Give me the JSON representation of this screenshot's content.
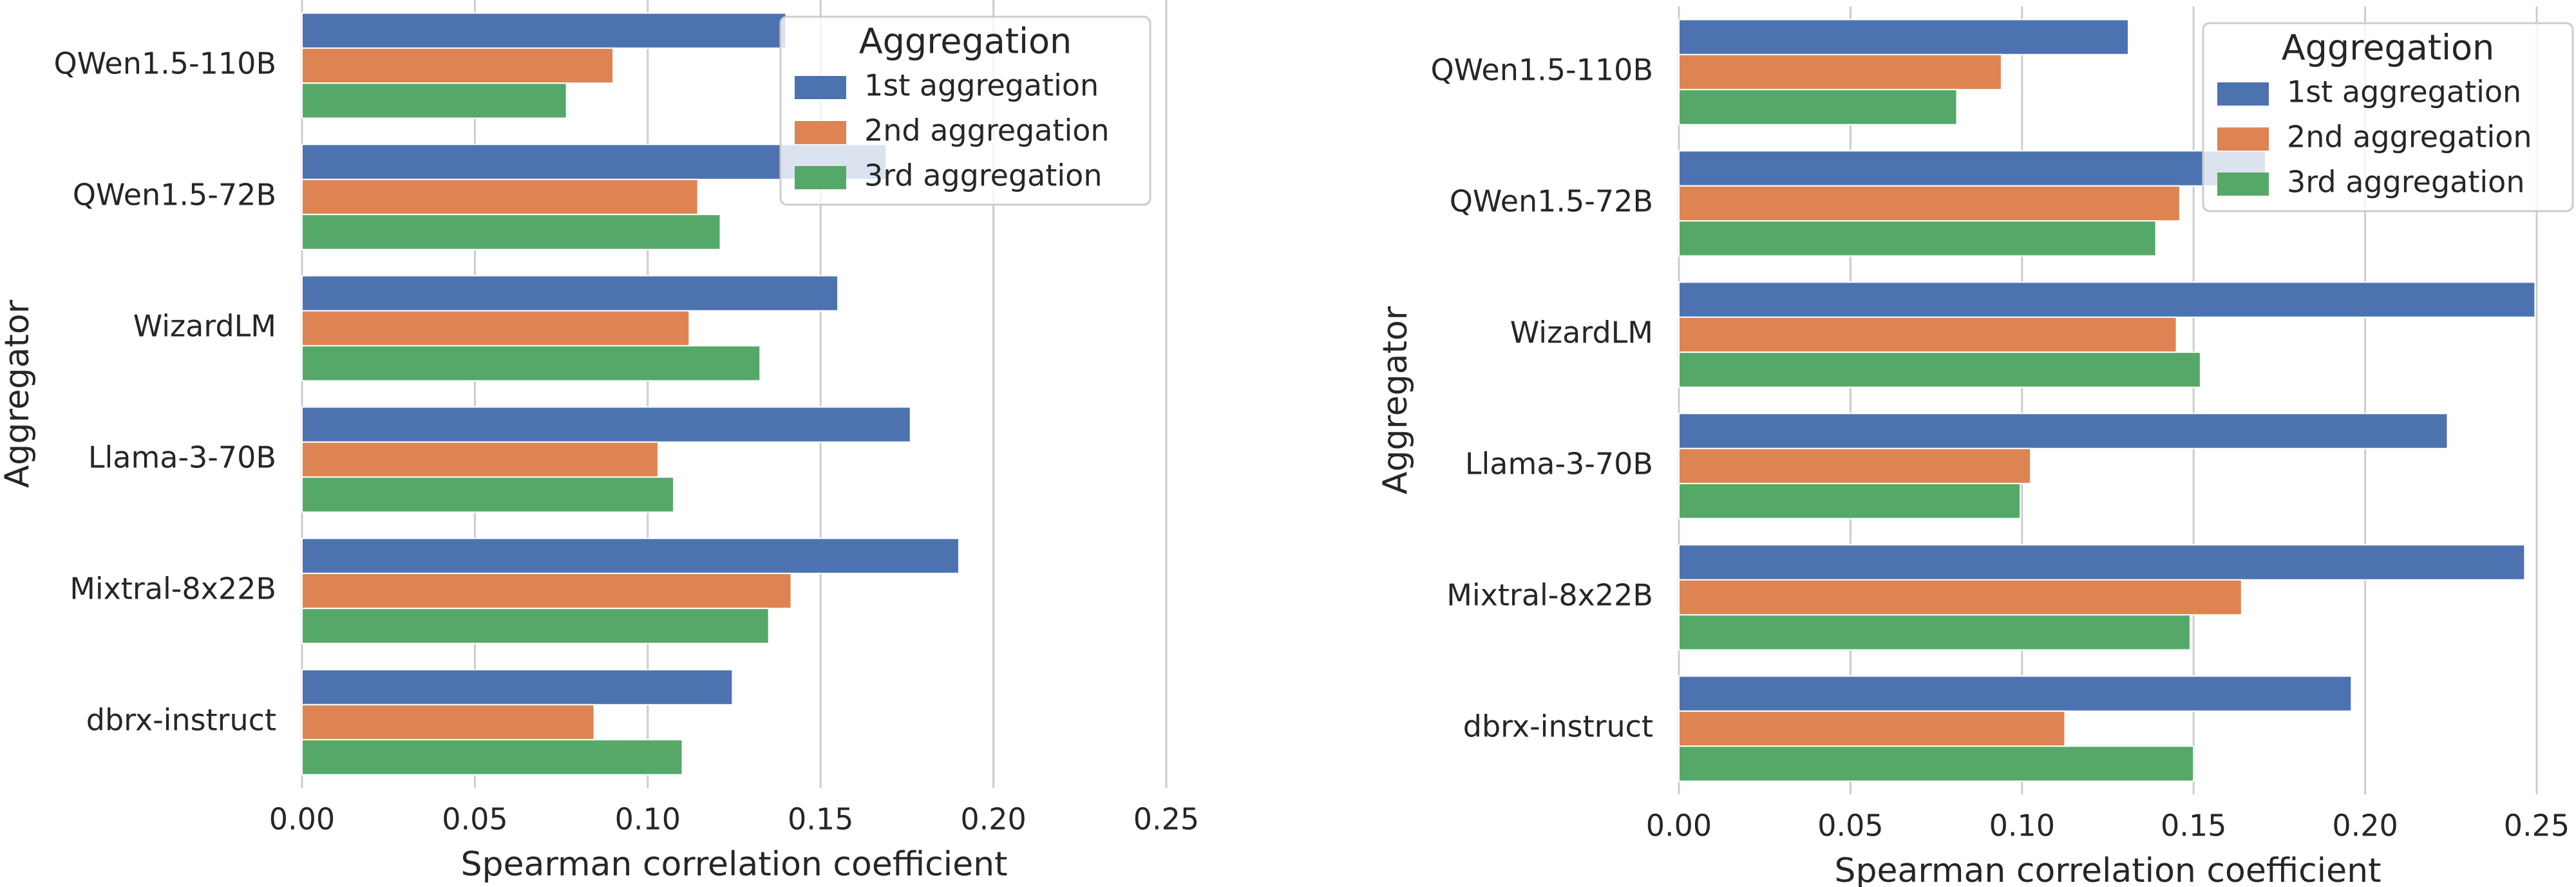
{
  "chart_data": [
    {
      "type": "bar",
      "orientation": "horizontal",
      "categories": [
        "QWen1.5-110B",
        "QWen1.5-72B",
        "WizardLM",
        "Llama-3-70B",
        "Mixtral-8x22B",
        "dbrx-instruct"
      ],
      "series": [
        {
          "name": "1st aggregation",
          "color": "#4c72b0",
          "values": [
            0.14,
            0.169,
            0.155,
            0.176,
            0.19,
            0.1245
          ]
        },
        {
          "name": "2nd aggregation",
          "color": "#dd8452",
          "values": [
            0.09,
            0.1145,
            0.112,
            0.103,
            0.1415,
            0.0845
          ]
        },
        {
          "name": "3rd aggregation",
          "color": "#55a868",
          "values": [
            0.0765,
            0.121,
            0.1325,
            0.1075,
            0.135,
            0.11
          ]
        }
      ],
      "xlim": [
        0,
        0.25
      ],
      "xticks": [
        {
          "value": 0,
          "label": "0.00"
        },
        {
          "value": 0.05,
          "label": "0.05"
        },
        {
          "value": 0.1,
          "label": "0.10"
        },
        {
          "value": 0.15,
          "label": "0.15"
        },
        {
          "value": 0.2,
          "label": "0.20"
        },
        {
          "value": 0.25,
          "label": "0.25"
        }
      ],
      "xlabel": "Spearman correlation coefficient",
      "ylabel": "Aggregator",
      "legend_title": "Aggregation",
      "legend": "upper right",
      "grid": true
    },
    {
      "type": "bar",
      "orientation": "horizontal",
      "categories": [
        "QWen1.5-110B",
        "QWen1.5-72B",
        "WizardLM",
        "Llama-3-70B",
        "Mixtral-8x22B",
        "dbrx-instruct"
      ],
      "series": [
        {
          "name": "1st aggregation",
          "color": "#4c72b0",
          "values": [
            0.131,
            0.171,
            0.2495,
            0.224,
            0.2465,
            0.196
          ]
        },
        {
          "name": "2nd aggregation",
          "color": "#dd8452",
          "values": [
            0.094,
            0.146,
            0.145,
            0.1025,
            0.164,
            0.1125
          ]
        },
        {
          "name": "3rd aggregation",
          "color": "#55a868",
          "values": [
            0.081,
            0.139,
            0.152,
            0.0995,
            0.149,
            0.15
          ]
        }
      ],
      "xlim": [
        0,
        0.25
      ],
      "xticks": [
        {
          "value": 0,
          "label": "0.00"
        },
        {
          "value": 0.05,
          "label": "0.05"
        },
        {
          "value": 0.1,
          "label": "0.10"
        },
        {
          "value": 0.15,
          "label": "0.15"
        },
        {
          "value": 0.2,
          "label": "0.20"
        },
        {
          "value": 0.25,
          "label": "0.25"
        }
      ],
      "xlabel": "Spearman correlation coefficient",
      "ylabel": "Aggregator",
      "legend_title": "Aggregation",
      "legend": "upper right",
      "grid": true
    }
  ]
}
